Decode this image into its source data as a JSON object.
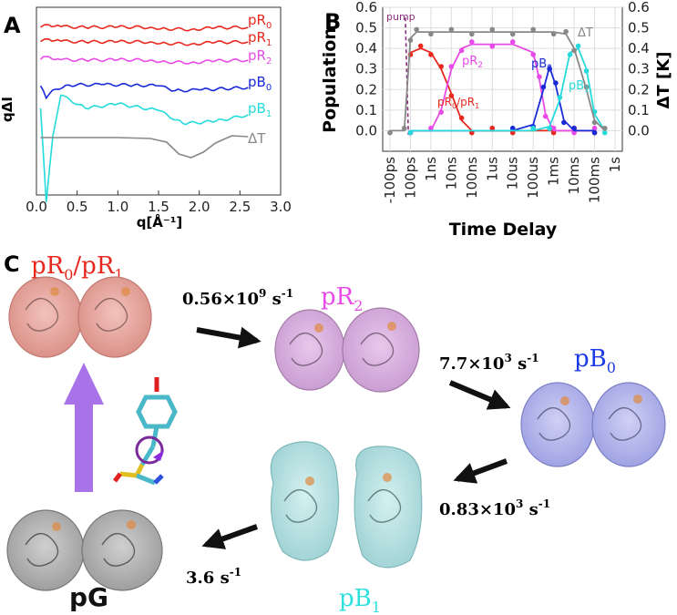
{
  "panel_a": {
    "panel_label": "A",
    "ylabel": "qΔI",
    "xlabel": "q[Å⁻¹]",
    "curve_labels": [
      {
        "main": "pR",
        "sub": "0",
        "color": "#e8281e"
      },
      {
        "main": "pR",
        "sub": "1",
        "color": "#e8281e"
      },
      {
        "main": "pR",
        "sub": "2",
        "color": "#e84ae8"
      },
      {
        "main": "pB",
        "sub": "0",
        "color": "#1a2ad8"
      },
      {
        "main": "pB",
        "sub": "1",
        "color": "#25dada"
      },
      {
        "main": "ΔT",
        "sub": "",
        "color": "#888888"
      }
    ]
  },
  "panel_b": {
    "panel_label": "B",
    "pump_label": "pump",
    "label_pr01": {
      "a": "pR",
      "a_sub": "0",
      "sep": "/pR",
      "b_sub": "1"
    },
    "label_pr2": {
      "main": "pR",
      "sub": "2"
    },
    "label_pb0": {
      "main": "pB",
      "sub": "0"
    },
    "label_pb1": {
      "main": "pB",
      "sub": "1"
    },
    "label_dt": "ΔT",
    "colors": {
      "pR01": "#e8281e",
      "pR2": "#e84ae8",
      "pB0": "#1a2ad8",
      "pB1": "#25dada",
      "dT": "#888888",
      "pump": "#8b2e7a"
    }
  },
  "panel_c": {
    "panel_label": "C",
    "states": {
      "pr01": {
        "a": "pR",
        "a_sub": "0",
        "sep": "/pR",
        "b_sub": "1",
        "color": "#e8281e"
      },
      "pr2": {
        "main": "pR",
        "sub": "2",
        "color": "#e84ae8"
      },
      "pb0": {
        "main": "pB",
        "sub": "0",
        "color": "#1a3ae8"
      },
      "pb1": {
        "main": "pB",
        "sub": "1",
        "color": "#2ee0e0"
      },
      "pg": {
        "main": "pG",
        "color": "#111111"
      }
    },
    "rates": {
      "r1": {
        "base": "0.56×10",
        "exp": "9",
        "unit": " s",
        "unit_exp": "-1"
      },
      "r2": {
        "base": "7.7×10",
        "exp": "3",
        "unit": " s",
        "unit_exp": "-1"
      },
      "r3": {
        "base": "0.83×10",
        "exp": "3",
        "unit": " s",
        "unit_exp": "-1"
      },
      "r4": {
        "base": "3.6 s",
        "unit_exp": "-1"
      }
    }
  },
  "chart_data": [
    {
      "type": "line",
      "xlabel": "q[Å⁻¹]",
      "ylabel": "qΔI",
      "xlim": [
        0.0,
        3.0
      ],
      "x_ticks": [
        "0.0",
        "0.5",
        "1.0",
        "1.5",
        "2.0",
        "2.5",
        "3.0"
      ],
      "grid": false,
      "series": [
        {
          "name": "pR0",
          "x": [
            0.05,
            0.15,
            0.3,
            0.6,
            1.0,
            1.4,
            1.6,
            1.9,
            2.2,
            2.6
          ],
          "values": [
            0.02,
            0.35,
            0.1,
            0.0,
            0.05,
            0.0,
            -0.2,
            -0.3,
            -0.05,
            0.0
          ]
        },
        {
          "name": "pR1",
          "x": [
            0.05,
            0.15,
            0.3,
            0.6,
            1.0,
            1.4,
            1.6,
            1.9,
            2.2,
            2.6
          ],
          "values": [
            0.05,
            0.4,
            0.1,
            0.0,
            0.03,
            0.0,
            -0.2,
            -0.3,
            -0.05,
            0.0
          ]
        },
        {
          "name": "pR2",
          "x": [
            0.05,
            0.12,
            0.3,
            0.6,
            1.0,
            1.4,
            1.6,
            1.9,
            2.2,
            2.6
          ],
          "values": [
            0.1,
            0.5,
            0.05,
            0.0,
            0.05,
            0.0,
            -0.25,
            -0.35,
            -0.1,
            0.0
          ]
        },
        {
          "name": "pB0",
          "x": [
            0.05,
            0.12,
            0.2,
            0.4,
            0.8,
            1.2,
            1.5,
            1.7,
            2.0,
            2.6
          ],
          "values": [
            0.2,
            -1.3,
            -0.3,
            0.3,
            0.35,
            0.3,
            0.2,
            -0.4,
            -0.3,
            0.0
          ]
        },
        {
          "name": "pB1",
          "x": [
            0.05,
            0.12,
            0.2,
            0.3,
            0.6,
            1.0,
            1.5,
            1.8,
            2.2,
            2.6
          ],
          "values": [
            0.3,
            -4.0,
            -1.0,
            0.9,
            0.3,
            0.5,
            0.2,
            -0.4,
            -0.3,
            0.0
          ]
        },
        {
          "name": "ΔT",
          "x": [
            0.05,
            0.5,
            1.0,
            1.4,
            1.6,
            1.75,
            1.9,
            2.05,
            2.2,
            2.4,
            2.6
          ],
          "values": [
            0.0,
            0.0,
            0.0,
            -0.05,
            -0.25,
            -0.9,
            -1.1,
            -0.8,
            -0.3,
            0.1,
            0.05
          ]
        }
      ]
    },
    {
      "type": "scatter",
      "xlabel": "Time Delay",
      "ylabel": "Population",
      "y2label": "ΔT [K]",
      "categories": [
        "-100ps",
        "100ps",
        "1ns",
        "10ns",
        "100ns",
        "1us",
        "10us",
        "100us",
        "1ms",
        "10ms",
        "100ms",
        "1s"
      ],
      "ylim": [
        -0.1,
        0.6
      ],
      "y2lim": [
        -0.1,
        0.6
      ],
      "y_ticks": [
        "0.0",
        "0.1",
        "0.2",
        "0.3",
        "0.4",
        "0.5",
        "0.6"
      ],
      "series": [
        {
          "name": "pR0/pR1",
          "x_index": [
            1,
            1.5,
            2,
            2.5,
            3,
            3.5,
            4,
            5,
            6,
            7,
            8,
            9,
            10
          ],
          "values": [
            0.38,
            0.4,
            0.38,
            0.3,
            0.18,
            0.05,
            0.0,
            0.0,
            0.0,
            0.0,
            0.0,
            0.0,
            0.0
          ]
        },
        {
          "name": "pR2",
          "x_index": [
            1,
            2,
            2.5,
            3,
            3.5,
            4,
            5,
            6,
            7,
            7.3,
            7.6,
            8,
            9,
            10
          ],
          "values": [
            0.0,
            0.0,
            0.1,
            0.3,
            0.4,
            0.42,
            0.42,
            0.42,
            0.38,
            0.25,
            0.08,
            0.0,
            0.0,
            0.0
          ]
        },
        {
          "name": "pB0",
          "x_index": [
            1,
            6,
            7,
            7.5,
            7.8,
            8.1,
            8.5,
            9,
            10
          ],
          "values": [
            0.0,
            0.0,
            0.03,
            0.2,
            0.31,
            0.22,
            0.05,
            0.0,
            0.0
          ]
        },
        {
          "name": "pB1",
          "x_index": [
            1,
            7,
            7.8,
            8.3,
            8.8,
            9.2,
            9.6,
            10,
            10.5
          ],
          "values": [
            0.0,
            0.0,
            0.02,
            0.15,
            0.38,
            0.4,
            0.3,
            0.08,
            0.0
          ]
        },
        {
          "name": "ΔT",
          "x_index": [
            0,
            0.7,
            1,
            1.3,
            2,
            3,
            4,
            5,
            6,
            7,
            8,
            8.6,
            9,
            9.6,
            10,
            10.5
          ],
          "values": [
            0.0,
            0.0,
            0.45,
            0.48,
            0.48,
            0.48,
            0.48,
            0.48,
            0.48,
            0.48,
            0.48,
            0.47,
            0.4,
            0.2,
            0.05,
            0.0
          ]
        }
      ]
    }
  ]
}
